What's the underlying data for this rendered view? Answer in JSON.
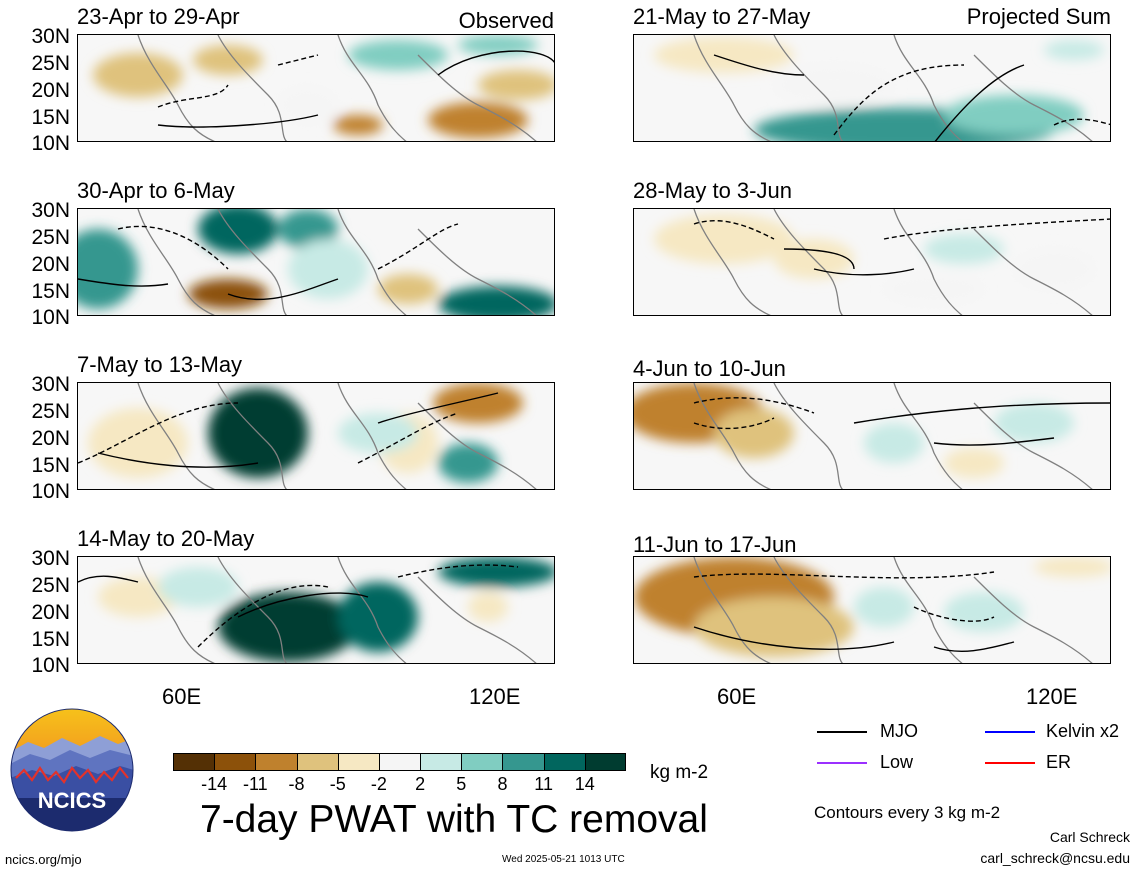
{
  "panels": [
    {
      "title": "23-Apr to 29-Apr",
      "corner": "Observed"
    },
    {
      "title": "30-Apr to 6-May",
      "corner": ""
    },
    {
      "title": "7-May to 13-May",
      "corner": ""
    },
    {
      "title": "14-May to 20-May",
      "corner": ""
    },
    {
      "title": "21-May to 27-May",
      "corner": "Projected Sum"
    },
    {
      "title": "28-May to 3-Jun",
      "corner": ""
    },
    {
      "title": "4-Jun to 10-Jun",
      "corner": ""
    },
    {
      "title": "11-Jun to 17-Jun",
      "corner": ""
    }
  ],
  "lat_labels": [
    "30N",
    "25N",
    "20N",
    "15N",
    "10N"
  ],
  "lon_labels": [
    "60E",
    "120E"
  ],
  "colorbar": {
    "ticks": [
      "-14",
      "-11",
      "-8",
      "-5",
      "-2",
      "2",
      "5",
      "8",
      "11",
      "14"
    ],
    "colors": [
      "#543005",
      "#8c510a",
      "#bf812d",
      "#dfc27d",
      "#f6e8c3",
      "#f5f5f5",
      "#c7eae5",
      "#80cdc1",
      "#35978f",
      "#01665e",
      "#003c30"
    ],
    "units": "kg m-2"
  },
  "legend": [
    {
      "label": "MJO",
      "color": "#000000"
    },
    {
      "label": "Kelvin x2",
      "color": "#0000ff"
    },
    {
      "label": "Low",
      "color": "#9b30ff"
    },
    {
      "label": "ER",
      "color": "#ff0000"
    }
  ],
  "main_title": "7-day PWAT with TC removal",
  "contours_note": "Contours every 3 kg m-2",
  "author": "Carl Schreck",
  "email": "carl_schreck@ncsu.edu",
  "site": "ncics.org/mjo",
  "timestamp": "Wed 2025-05-21 1013 UTC",
  "logo_text": "NCICS"
}
